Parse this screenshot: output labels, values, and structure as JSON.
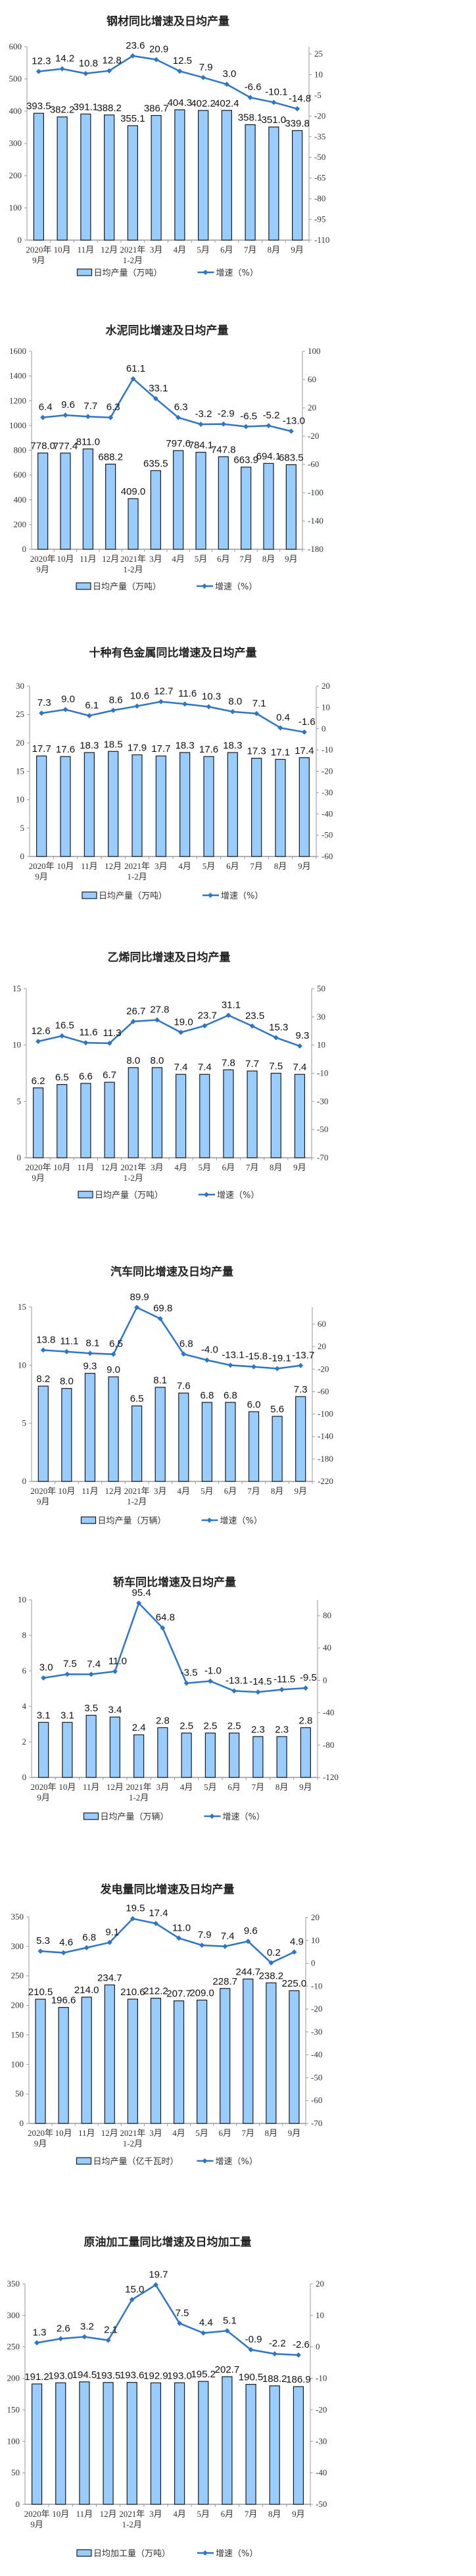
{
  "categories": [
    [
      "2020年",
      "9月"
    ],
    [
      "10月"
    ],
    [
      "11月"
    ],
    [
      "12月"
    ],
    [
      "2021年",
      "1-2月"
    ],
    [
      "3月"
    ],
    [
      "4月"
    ],
    [
      "5月"
    ],
    [
      "6月"
    ],
    [
      "7月"
    ],
    [
      "8月"
    ],
    [
      "9月"
    ]
  ],
  "colors": {
    "bar_fill": "#99ccff",
    "bar_stroke": "#1a1a1a",
    "line": "#2e75c4",
    "axis": "#999999"
  },
  "growth_legend": "增速（%）",
  "chart_data": [
    {
      "type": "bar+line",
      "title": "钢材同比增速及日均产量",
      "bar_legend": "日均产量（万吨）",
      "left_ticks": [
        0,
        100,
        200,
        300,
        400,
        500,
        600
      ],
      "right_ticks": [
        -110,
        -95,
        -80,
        -65,
        -50,
        -35,
        -20,
        -5,
        10,
        25
      ],
      "bars": [
        393.5,
        382.2,
        391.1,
        388.2,
        355.1,
        386.7,
        404.3,
        402.2,
        402.4,
        358.1,
        351.0,
        339.8
      ],
      "growth": [
        12.3,
        14.2,
        10.8,
        12.8,
        23.6,
        20.9,
        12.5,
        7.9,
        3.0,
        -6.6,
        -10.1,
        -14.8
      ]
    },
    {
      "type": "bar+line",
      "title": "水泥同比增速及日均产量",
      "bar_legend": "日均产量（万吨）",
      "left_ticks": [
        0,
        200,
        400,
        600,
        800,
        1000,
        1200,
        1400,
        1600
      ],
      "right_ticks": [
        -180,
        -140,
        -100,
        -60,
        -20,
        20,
        60,
        100
      ],
      "bars": [
        778.0,
        777.4,
        811.0,
        688.2,
        409.0,
        635.5,
        797.6,
        784.1,
        747.8,
        663.9,
        694.1,
        683.5
      ],
      "growth": [
        6.4,
        9.6,
        7.7,
        6.3,
        61.1,
        33.1,
        6.3,
        -3.2,
        -2.9,
        -6.5,
        -5.2,
        -13.0
      ]
    },
    {
      "type": "bar+line",
      "title": "十种有色金属同比增速及日均产量",
      "bar_legend": "日均产量（万吨）",
      "left_ticks": [
        0,
        5,
        10,
        15,
        20,
        25,
        30
      ],
      "right_ticks": [
        -60,
        -50,
        -40,
        -30,
        -20,
        -10,
        0,
        10,
        20
      ],
      "bars": [
        17.7,
        17.6,
        18.3,
        18.5,
        17.9,
        17.7,
        18.3,
        17.6,
        18.3,
        17.3,
        17.1,
        17.4
      ],
      "growth": [
        7.3,
        9.0,
        6.1,
        8.6,
        10.6,
        12.7,
        11.6,
        10.3,
        8.0,
        7.1,
        0.4,
        -1.6
      ]
    },
    {
      "type": "bar+line",
      "title": "乙烯同比增速及日均产量",
      "bar_legend": "日均产量（万吨）",
      "left_ticks": [
        0,
        5,
        10,
        15
      ],
      "right_ticks": [
        -70,
        -50,
        -30,
        -10,
        10,
        30,
        50
      ],
      "bars": [
        6.2,
        6.5,
        6.6,
        6.7,
        8.0,
        8.0,
        7.4,
        7.4,
        7.8,
        7.7,
        7.5,
        7.4
      ],
      "growth": [
        12.6,
        16.5,
        11.6,
        11.3,
        26.7,
        27.8,
        19.0,
        23.7,
        31.1,
        23.5,
        15.3,
        9.3
      ]
    },
    {
      "type": "bar+line",
      "title": "汽车同比增速及日均产量",
      "bar_legend": "日均产量（万辆）",
      "left_ticks": [
        0,
        5,
        10,
        15
      ],
      "right_ticks": [
        -220,
        -180,
        -140,
        -100,
        -60,
        -20,
        20,
        60
      ],
      "bars": [
        8.2,
        8.0,
        9.3,
        9.0,
        6.5,
        8.1,
        7.6,
        6.8,
        6.8,
        6.0,
        5.6,
        7.3
      ],
      "growth": [
        13.8,
        11.1,
        8.1,
        6.5,
        89.9,
        69.8,
        6.8,
        -4.0,
        -13.1,
        -15.8,
        -19.1,
        -13.7
      ]
    },
    {
      "type": "bar+line",
      "title": "轿车同比增速及日均产量",
      "bar_legend": "日均产量（万辆）",
      "left_ticks": [
        0,
        2,
        4,
        6,
        8,
        10
      ],
      "right_ticks": [
        -120,
        -80,
        -40,
        0,
        40,
        80
      ],
      "bars": [
        3.1,
        3.1,
        3.5,
        3.4,
        2.4,
        2.8,
        2.5,
        2.5,
        2.5,
        2.3,
        2.3,
        2.8
      ],
      "growth": [
        3.0,
        7.5,
        7.4,
        11.0,
        95.4,
        64.8,
        -3.5,
        -1.0,
        -13.1,
        -14.5,
        -11.5,
        -9.5
      ]
    },
    {
      "type": "bar+line",
      "title": "发电量同比增速及日均产量",
      "bar_legend": "日均产量（亿千瓦时）",
      "left_ticks": [
        0,
        50,
        100,
        150,
        200,
        250,
        300,
        350
      ],
      "right_ticks": [
        -70,
        -60,
        -50,
        -40,
        -30,
        -20,
        -10,
        0,
        10,
        20
      ],
      "bars": [
        210.5,
        196.6,
        214.0,
        234.7,
        210.6,
        212.2,
        207.7,
        209.0,
        228.7,
        244.7,
        238.2,
        225.0
      ],
      "growth": [
        5.3,
        4.6,
        6.8,
        9.1,
        19.5,
        17.4,
        11.0,
        7.9,
        7.4,
        9.6,
        0.2,
        4.9
      ]
    },
    {
      "type": "bar+line",
      "title": "原油加工量同比增速及日均加工量",
      "bar_legend": "日均加工量（万吨）",
      "left_ticks": [
        0,
        50,
        100,
        150,
        200,
        250,
        300,
        350
      ],
      "right_ticks": [
        -50,
        -40,
        -30,
        -20,
        -10,
        0,
        10,
        20
      ],
      "bars": [
        191.2,
        193.0,
        194.5,
        193.5,
        193.6,
        192.9,
        193.0,
        195.2,
        202.7,
        190.5,
        188.2,
        186.9
      ],
      "growth": [
        1.3,
        2.6,
        3.2,
        2.1,
        15.0,
        19.7,
        7.5,
        4.4,
        5.1,
        -0.9,
        -2.2,
        -2.6
      ]
    }
  ]
}
